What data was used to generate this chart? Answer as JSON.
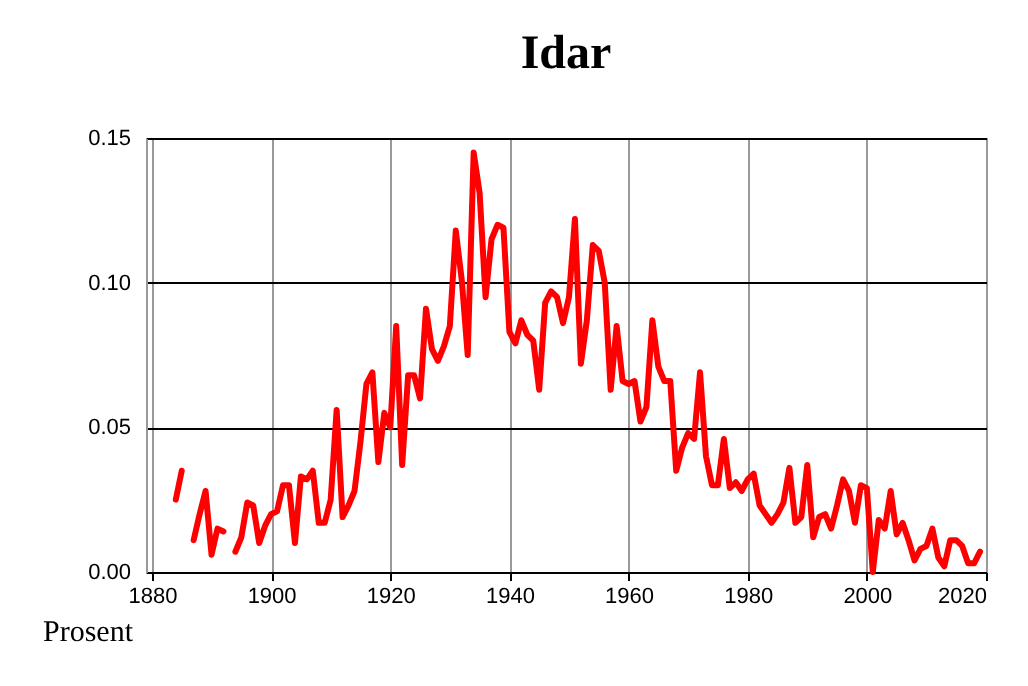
{
  "chart_data": {
    "type": "line",
    "title": "Idar",
    "ylabel": "Prosent",
    "x": [
      1884,
      1885,
      1886,
      1887,
      1888,
      1889,
      1890,
      1891,
      1892,
      1893,
      1894,
      1895,
      1896,
      1897,
      1898,
      1899,
      1900,
      1901,
      1902,
      1903,
      1904,
      1905,
      1906,
      1907,
      1908,
      1909,
      1910,
      1911,
      1912,
      1913,
      1914,
      1915,
      1916,
      1917,
      1918,
      1919,
      1920,
      1921,
      1922,
      1923,
      1924,
      1925,
      1926,
      1927,
      1928,
      1929,
      1930,
      1931,
      1932,
      1933,
      1934,
      1935,
      1936,
      1937,
      1938,
      1939,
      1940,
      1941,
      1942,
      1943,
      1944,
      1945,
      1946,
      1947,
      1948,
      1949,
      1950,
      1951,
      1952,
      1953,
      1954,
      1955,
      1956,
      1957,
      1958,
      1959,
      1960,
      1961,
      1962,
      1963,
      1964,
      1965,
      1966,
      1967,
      1968,
      1969,
      1970,
      1971,
      1972,
      1973,
      1974,
      1975,
      1976,
      1977,
      1978,
      1979,
      1980,
      1981,
      1982,
      1983,
      1984,
      1985,
      1986,
      1987,
      1988,
      1989,
      1990,
      1991,
      1992,
      1993,
      1994,
      1995,
      1996,
      1997,
      1998,
      1999,
      2000,
      2001,
      2002,
      2003,
      2004,
      2005,
      2006,
      2007,
      2008,
      2009,
      2010,
      2011,
      2012,
      2013,
      2014,
      2015,
      2016,
      2017,
      2018,
      2019
    ],
    "series": [
      {
        "color": "#ff0000",
        "values": [
          0.025,
          0.035,
          null,
          0.011,
          0.02,
          0.028,
          0.006,
          0.015,
          0.014,
          null,
          0.007,
          0.012,
          0.024,
          0.023,
          0.01,
          0.016,
          0.02,
          0.021,
          0.03,
          0.03,
          0.01,
          0.033,
          0.032,
          0.035,
          0.017,
          0.017,
          0.025,
          0.056,
          0.019,
          0.023,
          0.028,
          0.045,
          0.065,
          0.069,
          0.038,
          0.055,
          0.05,
          0.085,
          0.037,
          0.068,
          0.068,
          0.06,
          0.091,
          0.077,
          0.073,
          0.078,
          0.085,
          0.118,
          0.101,
          0.075,
          0.145,
          0.131,
          0.095,
          0.115,
          0.12,
          0.119,
          0.083,
          0.079,
          0.087,
          0.082,
          0.08,
          0.063,
          0.093,
          0.097,
          0.095,
          0.086,
          0.095,
          0.122,
          0.072,
          0.087,
          0.113,
          0.111,
          0.1,
          0.063,
          0.085,
          0.066,
          0.065,
          0.066,
          0.052,
          0.057,
          0.087,
          0.071,
          0.066,
          0.066,
          0.035,
          0.043,
          0.048,
          0.046,
          0.069,
          0.04,
          0.03,
          0.03,
          0.046,
          0.029,
          0.031,
          0.028,
          0.032,
          0.034,
          0.023,
          0.02,
          0.017,
          0.02,
          0.024,
          0.036,
          0.017,
          0.019,
          0.037,
          0.012,
          0.019,
          0.02,
          0.015,
          0.023,
          0.032,
          0.028,
          0.017,
          0.03,
          0.029,
          0.0,
          0.018,
          0.015,
          0.028,
          0.013,
          0.017,
          0.011,
          0.004,
          0.008,
          0.009,
          0.015,
          0.005,
          0.002,
          0.011,
          0.011,
          0.009,
          0.003,
          0.003,
          0.007
        ]
      }
    ],
    "xlim": [
      1879,
      2020
    ],
    "xticks": [
      1880,
      1900,
      1920,
      1940,
      1960,
      1980,
      2000,
      2020
    ],
    "ylim": [
      0,
      0.15
    ],
    "yticks": [
      {
        "value": 0,
        "label": "0.00"
      },
      {
        "value": 0.05,
        "label": "0.05"
      },
      {
        "value": 0.1,
        "label": "0.10"
      },
      {
        "value": 0.15,
        "label": "0.15"
      }
    ],
    "grid": true,
    "line_style": "solid",
    "marker": "none"
  }
}
